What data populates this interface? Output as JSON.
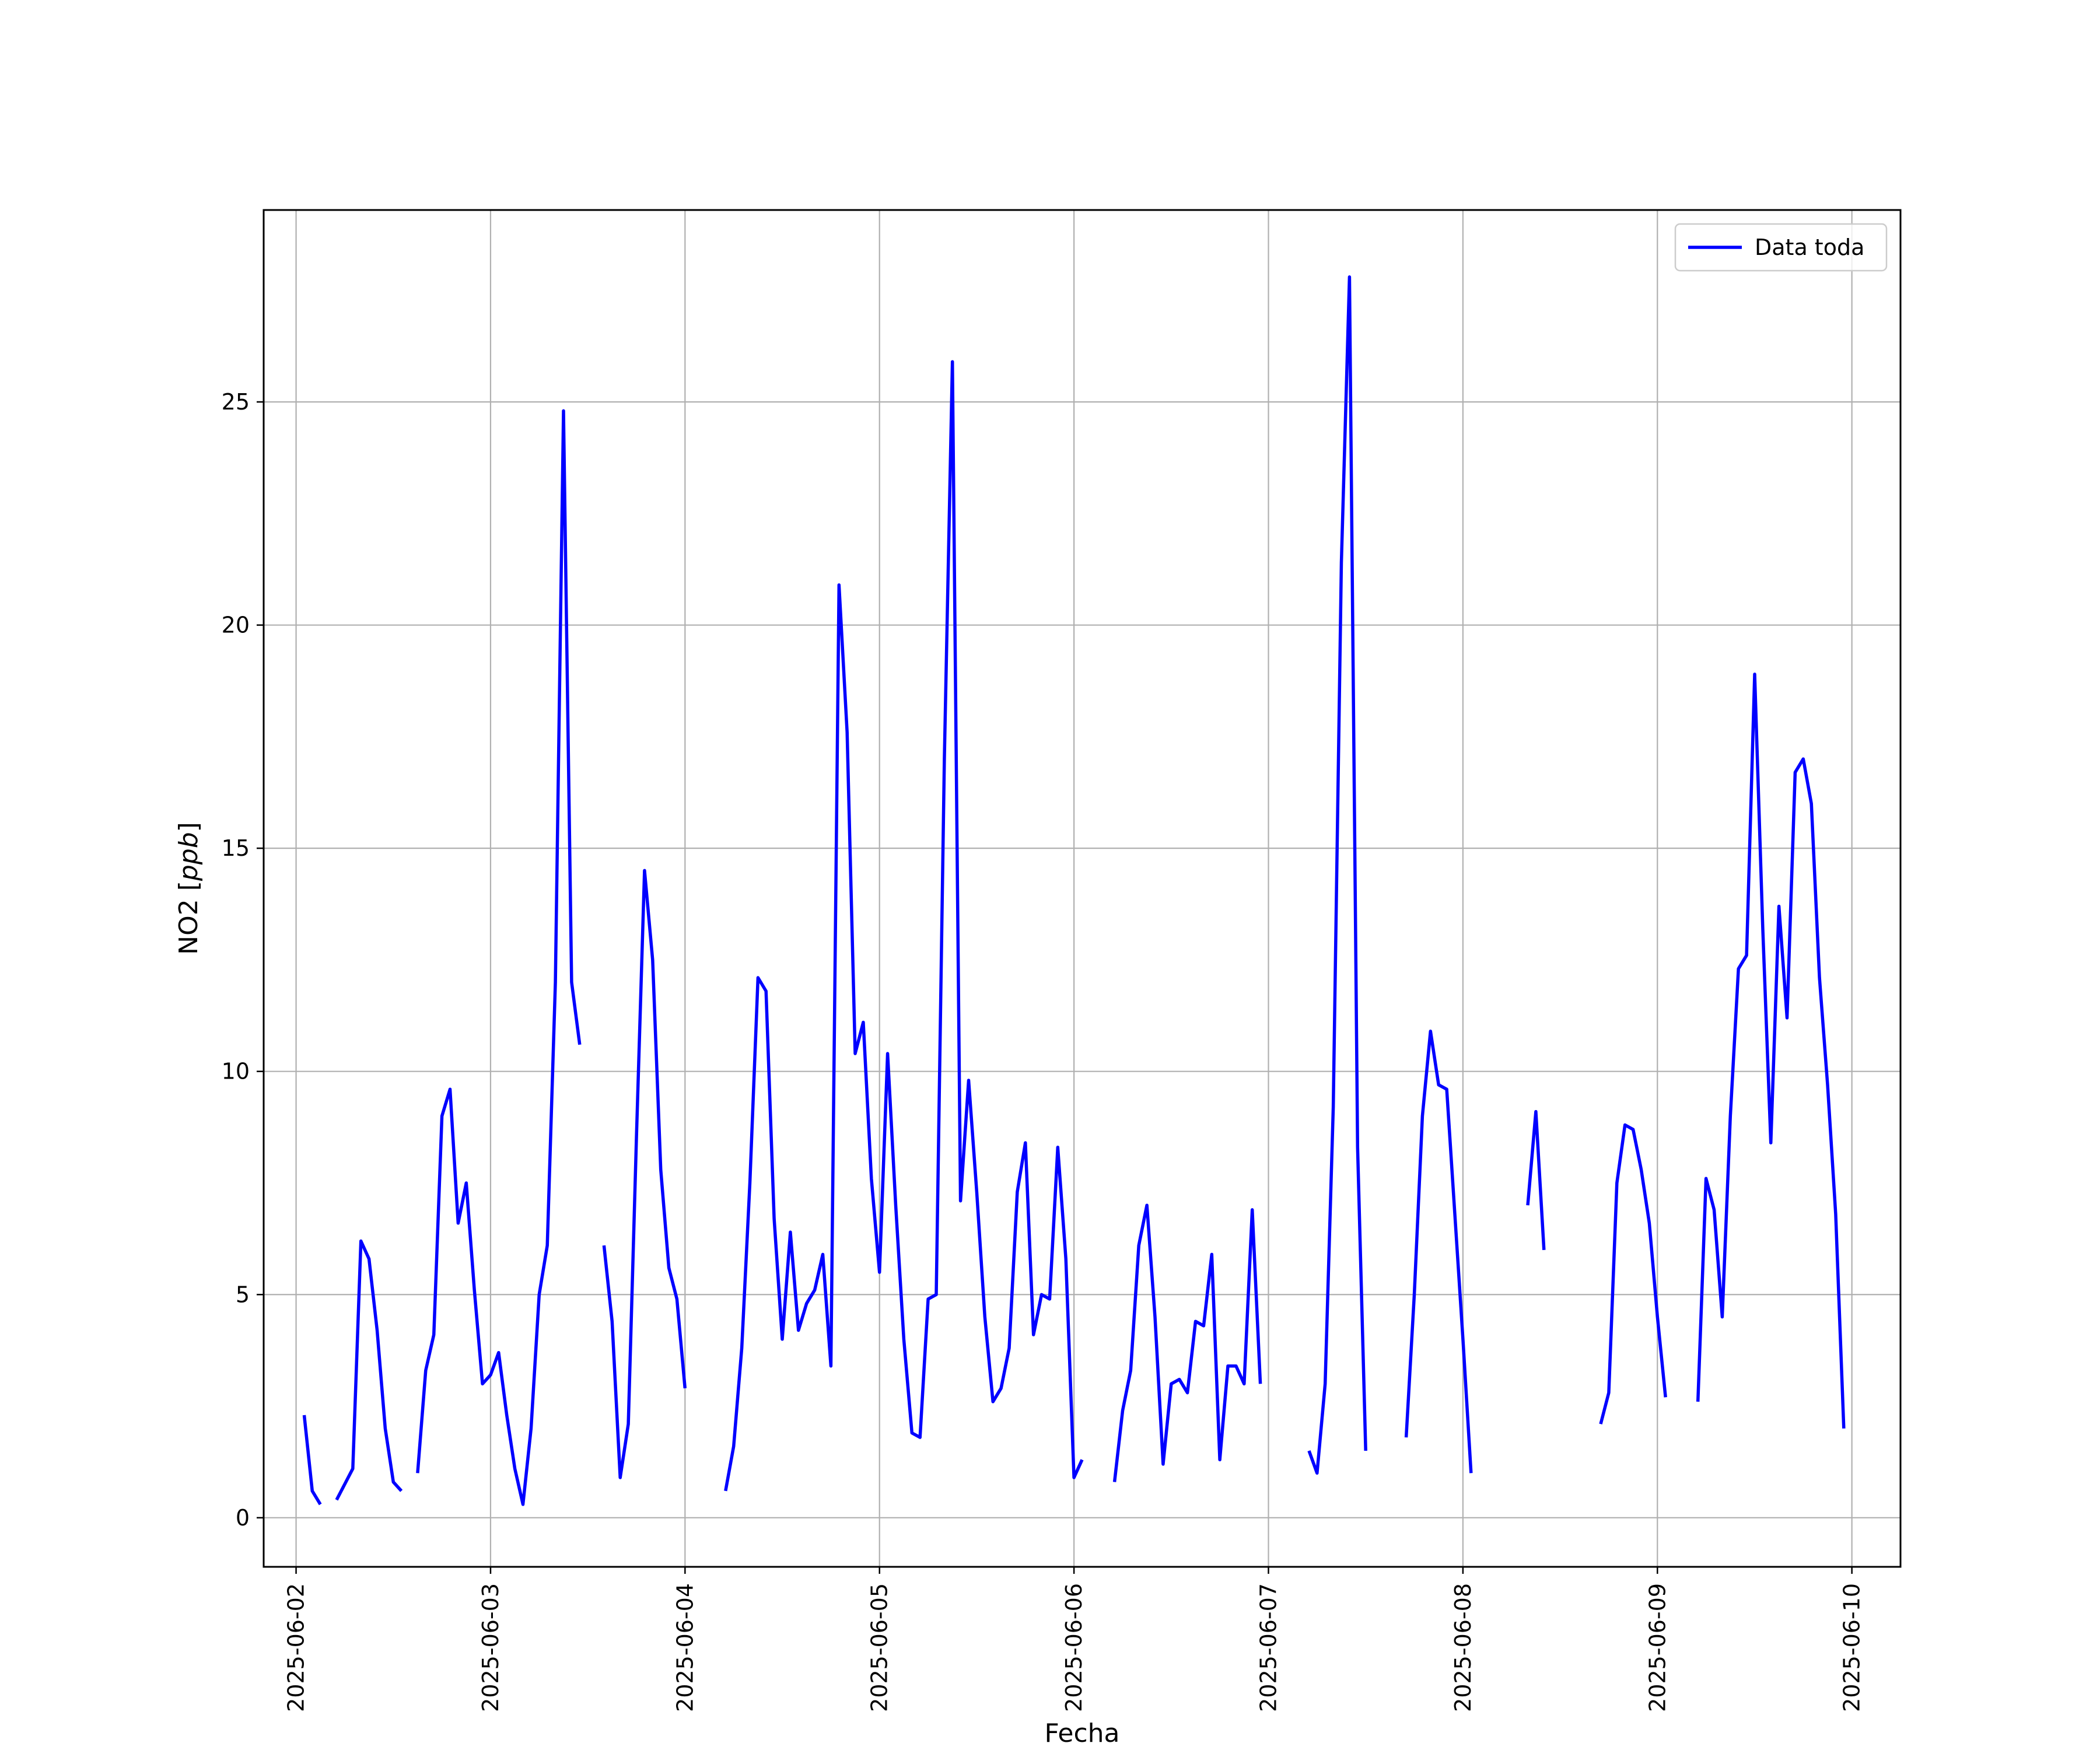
{
  "chart_data": {
    "type": "line",
    "title": "",
    "xlabel": "Fecha",
    "ylabel": "NO2 [ppb]",
    "xlim": [
      "2025-06-01T20:00",
      "2025-06-10T06:00"
    ],
    "ylim": [
      -1.1,
      29.3
    ],
    "x_ticks": [
      "2025-06-02",
      "2025-06-03",
      "2025-06-04",
      "2025-06-05",
      "2025-06-06",
      "2025-06-07",
      "2025-06-08",
      "2025-06-09",
      "2025-06-10"
    ],
    "y_ticks": [
      0,
      5,
      10,
      15,
      20,
      25
    ],
    "grid": true,
    "legend": {
      "position": "top-right",
      "entries": [
        "Data toda"
      ]
    },
    "series": [
      {
        "name": "Data toda",
        "color": "#0000ff",
        "segments": [
          [
            [
              "2025-06-02T01:00",
              2.3
            ],
            [
              "2025-06-02T02:00",
              0.6
            ],
            [
              "2025-06-02T03:00",
              0.3
            ]
          ],
          [
            [
              "2025-06-02T05:00",
              0.4
            ],
            [
              "2025-06-02T07:00",
              1.1
            ],
            [
              "2025-06-02T08:00",
              6.2
            ],
            [
              "2025-06-02T09:00",
              5.8
            ],
            [
              "2025-06-02T10:00",
              4.2
            ],
            [
              "2025-06-02T11:00",
              2.0
            ],
            [
              "2025-06-02T12:00",
              0.8
            ],
            [
              "2025-06-02T13:00",
              0.6
            ]
          ],
          [
            [
              "2025-06-02T15:00",
              1.0
            ],
            [
              "2025-06-02T16:00",
              3.3
            ],
            [
              "2025-06-02T17:00",
              4.1
            ],
            [
              "2025-06-02T18:00",
              9.0
            ],
            [
              "2025-06-02T19:00",
              9.6
            ],
            [
              "2025-06-02T20:00",
              6.6
            ],
            [
              "2025-06-02T21:00",
              7.5
            ],
            [
              "2025-06-02T22:00",
              5.1
            ],
            [
              "2025-06-02T23:00",
              3.0
            ],
            [
              "2025-06-03T00:00",
              3.2
            ],
            [
              "2025-06-03T01:00",
              3.7
            ],
            [
              "2025-06-03T02:00",
              2.3
            ],
            [
              "2025-06-03T03:00",
              1.1
            ],
            [
              "2025-06-03T04:00",
              0.3
            ],
            [
              "2025-06-03T05:00",
              2.0
            ],
            [
              "2025-06-03T06:00",
              5.0
            ],
            [
              "2025-06-03T07:00",
              6.1
            ],
            [
              "2025-06-03T08:00",
              12.0
            ],
            [
              "2025-06-03T09:00",
              24.8
            ],
            [
              "2025-06-03T10:00",
              12.0
            ],
            [
              "2025-06-03T11:00",
              10.6
            ]
          ],
          [
            [
              "2025-06-03T14:00",
              6.1
            ],
            [
              "2025-06-03T15:00",
              4.4
            ],
            [
              "2025-06-03T16:00",
              0.9
            ],
            [
              "2025-06-03T17:00",
              2.1
            ],
            [
              "2025-06-03T18:00",
              8.5
            ],
            [
              "2025-06-03T19:00",
              14.5
            ],
            [
              "2025-06-03T20:00",
              12.5
            ],
            [
              "2025-06-03T21:00",
              7.8
            ],
            [
              "2025-06-03T22:00",
              5.6
            ],
            [
              "2025-06-03T23:00",
              4.9
            ],
            [
              "2025-06-04T00:00",
              2.9
            ]
          ],
          [
            [
              "2025-06-04T05:00",
              0.6
            ],
            [
              "2025-06-04T06:00",
              1.6
            ],
            [
              "2025-06-04T07:00",
              3.8
            ],
            [
              "2025-06-04T08:00",
              7.5
            ],
            [
              "2025-06-04T09:00",
              12.1
            ],
            [
              "2025-06-04T10:00",
              11.8
            ],
            [
              "2025-06-04T11:00",
              6.7
            ],
            [
              "2025-06-04T12:00",
              4.0
            ],
            [
              "2025-06-04T13:00",
              6.4
            ],
            [
              "2025-06-04T14:00",
              4.2
            ],
            [
              "2025-06-04T15:00",
              4.8
            ],
            [
              "2025-06-04T16:00",
              5.1
            ],
            [
              "2025-06-04T17:00",
              5.9
            ],
            [
              "2025-06-04T18:00",
              3.4
            ],
            [
              "2025-06-04T19:00",
              20.9
            ],
            [
              "2025-06-04T20:00",
              17.6
            ],
            [
              "2025-06-04T21:00",
              10.4
            ],
            [
              "2025-06-04T22:00",
              11.1
            ],
            [
              "2025-06-04T23:00",
              7.6
            ],
            [
              "2025-06-05T00:00",
              5.5
            ],
            [
              "2025-06-05T01:00",
              10.4
            ],
            [
              "2025-06-05T02:00",
              7.0
            ],
            [
              "2025-06-05T03:00",
              4.0
            ],
            [
              "2025-06-05T04:00",
              1.9
            ],
            [
              "2025-06-05T05:00",
              1.8
            ],
            [
              "2025-06-05T06:00",
              4.9
            ],
            [
              "2025-06-05T07:00",
              5.0
            ],
            [
              "2025-06-05T08:00",
              17.0
            ],
            [
              "2025-06-05T09:00",
              25.9
            ],
            [
              "2025-06-05T10:00",
              7.1
            ],
            [
              "2025-06-05T11:00",
              9.8
            ],
            [
              "2025-06-05T12:00",
              7.3
            ],
            [
              "2025-06-05T13:00",
              4.5
            ],
            [
              "2025-06-05T14:00",
              2.6
            ],
            [
              "2025-06-05T15:00",
              2.9
            ],
            [
              "2025-06-05T16:00",
              3.8
            ],
            [
              "2025-06-05T17:00",
              7.3
            ],
            [
              "2025-06-05T18:00",
              8.4
            ],
            [
              "2025-06-05T19:00",
              4.1
            ],
            [
              "2025-06-05T20:00",
              5.0
            ],
            [
              "2025-06-05T21:00",
              4.9
            ],
            [
              "2025-06-05T22:00",
              8.3
            ],
            [
              "2025-06-05T23:00",
              5.8
            ],
            [
              "2025-06-06T00:00",
              0.9
            ],
            [
              "2025-06-06T01:00",
              1.3
            ]
          ],
          [
            [
              "2025-06-06T05:00",
              0.8
            ],
            [
              "2025-06-06T06:00",
              2.4
            ],
            [
              "2025-06-06T07:00",
              3.3
            ],
            [
              "2025-06-06T08:00",
              6.1
            ],
            [
              "2025-06-06T09:00",
              7.0
            ],
            [
              "2025-06-06T10:00",
              4.5
            ],
            [
              "2025-06-06T11:00",
              1.2
            ],
            [
              "2025-06-06T12:00",
              3.0
            ],
            [
              "2025-06-06T13:00",
              3.1
            ],
            [
              "2025-06-06T14:00",
              2.8
            ],
            [
              "2025-06-06T15:00",
              4.4
            ],
            [
              "2025-06-06T16:00",
              4.3
            ],
            [
              "2025-06-06T17:00",
              5.9
            ],
            [
              "2025-06-06T18:00",
              1.3
            ],
            [
              "2025-06-06T19:00",
              3.4
            ],
            [
              "2025-06-06T20:00",
              3.4
            ],
            [
              "2025-06-06T21:00",
              3.0
            ],
            [
              "2025-06-06T22:00",
              6.9
            ],
            [
              "2025-06-06T23:00",
              3.0
            ]
          ],
          [
            [
              "2025-06-07T05:00",
              1.5
            ],
            [
              "2025-06-07T06:00",
              1.0
            ],
            [
              "2025-06-07T07:00",
              3.0
            ],
            [
              "2025-06-07T08:00",
              9.2
            ],
            [
              "2025-06-07T09:00",
              21.4
            ],
            [
              "2025-06-07T10:00",
              27.8
            ],
            [
              "2025-06-07T11:00",
              8.3
            ],
            [
              "2025-06-07T12:00",
              1.5
            ]
          ],
          [
            [
              "2025-06-07T17:00",
              1.8
            ],
            [
              "2025-06-07T18:00",
              5.0
            ],
            [
              "2025-06-07T19:00",
              9.0
            ],
            [
              "2025-06-07T20:00",
              10.9
            ],
            [
              "2025-06-07T21:00",
              9.7
            ],
            [
              "2025-06-07T22:00",
              9.6
            ],
            [
              "2025-06-07T23:00",
              6.8
            ],
            [
              "2025-06-08T00:00",
              4.0
            ],
            [
              "2025-06-08T01:00",
              1.0
            ]
          ],
          [
            [
              "2025-06-08T08:00",
              7.0
            ],
            [
              "2025-06-08T09:00",
              9.1
            ],
            [
              "2025-06-08T10:00",
              6.0
            ]
          ],
          [
            [
              "2025-06-08T17:00",
              2.1
            ],
            [
              "2025-06-08T18:00",
              2.8
            ],
            [
              "2025-06-08T19:00",
              7.5
            ],
            [
              "2025-06-08T20:00",
              8.8
            ],
            [
              "2025-06-08T21:00",
              8.7
            ],
            [
              "2025-06-08T22:00",
              7.8
            ],
            [
              "2025-06-08T23:00",
              6.6
            ],
            [
              "2025-06-09T00:00",
              4.5
            ],
            [
              "2025-06-09T01:00",
              2.7
            ]
          ],
          [
            [
              "2025-06-09T05:00",
              2.6
            ],
            [
              "2025-06-09T06:00",
              7.6
            ],
            [
              "2025-06-09T07:00",
              6.9
            ],
            [
              "2025-06-09T08:00",
              4.5
            ],
            [
              "2025-06-09T09:00",
              9.0
            ],
            [
              "2025-06-09T10:00",
              12.3
            ],
            [
              "2025-06-09T11:00",
              12.6
            ],
            [
              "2025-06-09T12:00",
              18.9
            ],
            [
              "2025-06-09T13:00",
              13.2
            ],
            [
              "2025-06-09T14:00",
              8.4
            ],
            [
              "2025-06-09T15:00",
              13.7
            ],
            [
              "2025-06-09T16:00",
              11.2
            ],
            [
              "2025-06-09T17:00",
              16.7
            ],
            [
              "2025-06-09T18:00",
              17.0
            ],
            [
              "2025-06-09T19:00",
              16.0
            ],
            [
              "2025-06-09T20:00",
              12.1
            ],
            [
              "2025-06-09T21:00",
              9.7
            ],
            [
              "2025-06-09T22:00",
              6.8
            ],
            [
              "2025-06-09T23:00",
              2.0
            ]
          ]
        ]
      }
    ]
  }
}
